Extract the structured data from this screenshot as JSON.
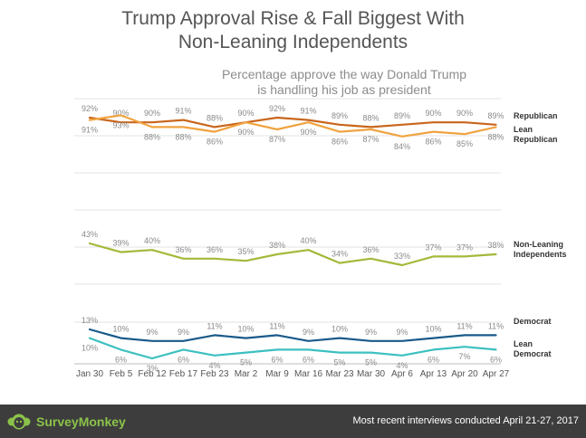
{
  "title_line1": "Trump Approval Rise & Fall Biggest With",
  "title_line2": "Non-Leaning Independents",
  "subtitle_line1": "Percentage approve the way Donald Trump",
  "subtitle_line2": "is handling his job as president",
  "footer": {
    "logo_text": "SurveyMonkey",
    "note": "Most recent interviews conducted April 21-27, 2017",
    "logo_color": "#8bc34a",
    "background": "#3d3d3d"
  },
  "chart_data": {
    "type": "line",
    "title": "Trump Approval Rise & Fall Biggest With Non-Leaning Independents",
    "subtitle": "Percentage approve the way Donald Trump is handling his job as president",
    "categories": [
      "Jan 30",
      "Feb 5",
      "Feb 12",
      "Feb 17",
      "Feb 23",
      "Mar 2",
      "Mar 9",
      "Mar 16",
      "Mar 23",
      "Mar 30",
      "Apr 6",
      "Apr 13",
      "Apr 20",
      "Apr 27"
    ],
    "ylim": [
      0,
      100
    ],
    "grid": true,
    "legend": "right",
    "series": [
      {
        "name": "Republican",
        "values": [
          92,
          90,
          90,
          91,
          88,
          90,
          92,
          91,
          89,
          88,
          89,
          90,
          90,
          89
        ],
        "color": "#c8661c",
        "label_pos": "above"
      },
      {
        "name": "Lean Republican",
        "values": [
          91,
          93,
          88,
          88,
          86,
          90,
          87,
          90,
          86,
          87,
          84,
          86,
          85,
          88
        ],
        "color": "#f0a340",
        "label_pos": "below"
      },
      {
        "name": "Non-Leaning Independents",
        "values": [
          43,
          39,
          40,
          36,
          36,
          35,
          38,
          40,
          34,
          36,
          33,
          37,
          37,
          38
        ],
        "color": "#a6b83a",
        "label_pos": "above"
      },
      {
        "name": "Democrat",
        "values": [
          13,
          10,
          9,
          9,
          11,
          10,
          11,
          9,
          10,
          9,
          9,
          10,
          11,
          11
        ],
        "color": "#1a5a8a",
        "label_pos": "above"
      },
      {
        "name": "Lean Democrat",
        "values": [
          10,
          6,
          3,
          6,
          4,
          5,
          6,
          6,
          5,
          5,
          4,
          6,
          7,
          6
        ],
        "color": "#3cc0c0",
        "label_pos": "below"
      }
    ]
  }
}
